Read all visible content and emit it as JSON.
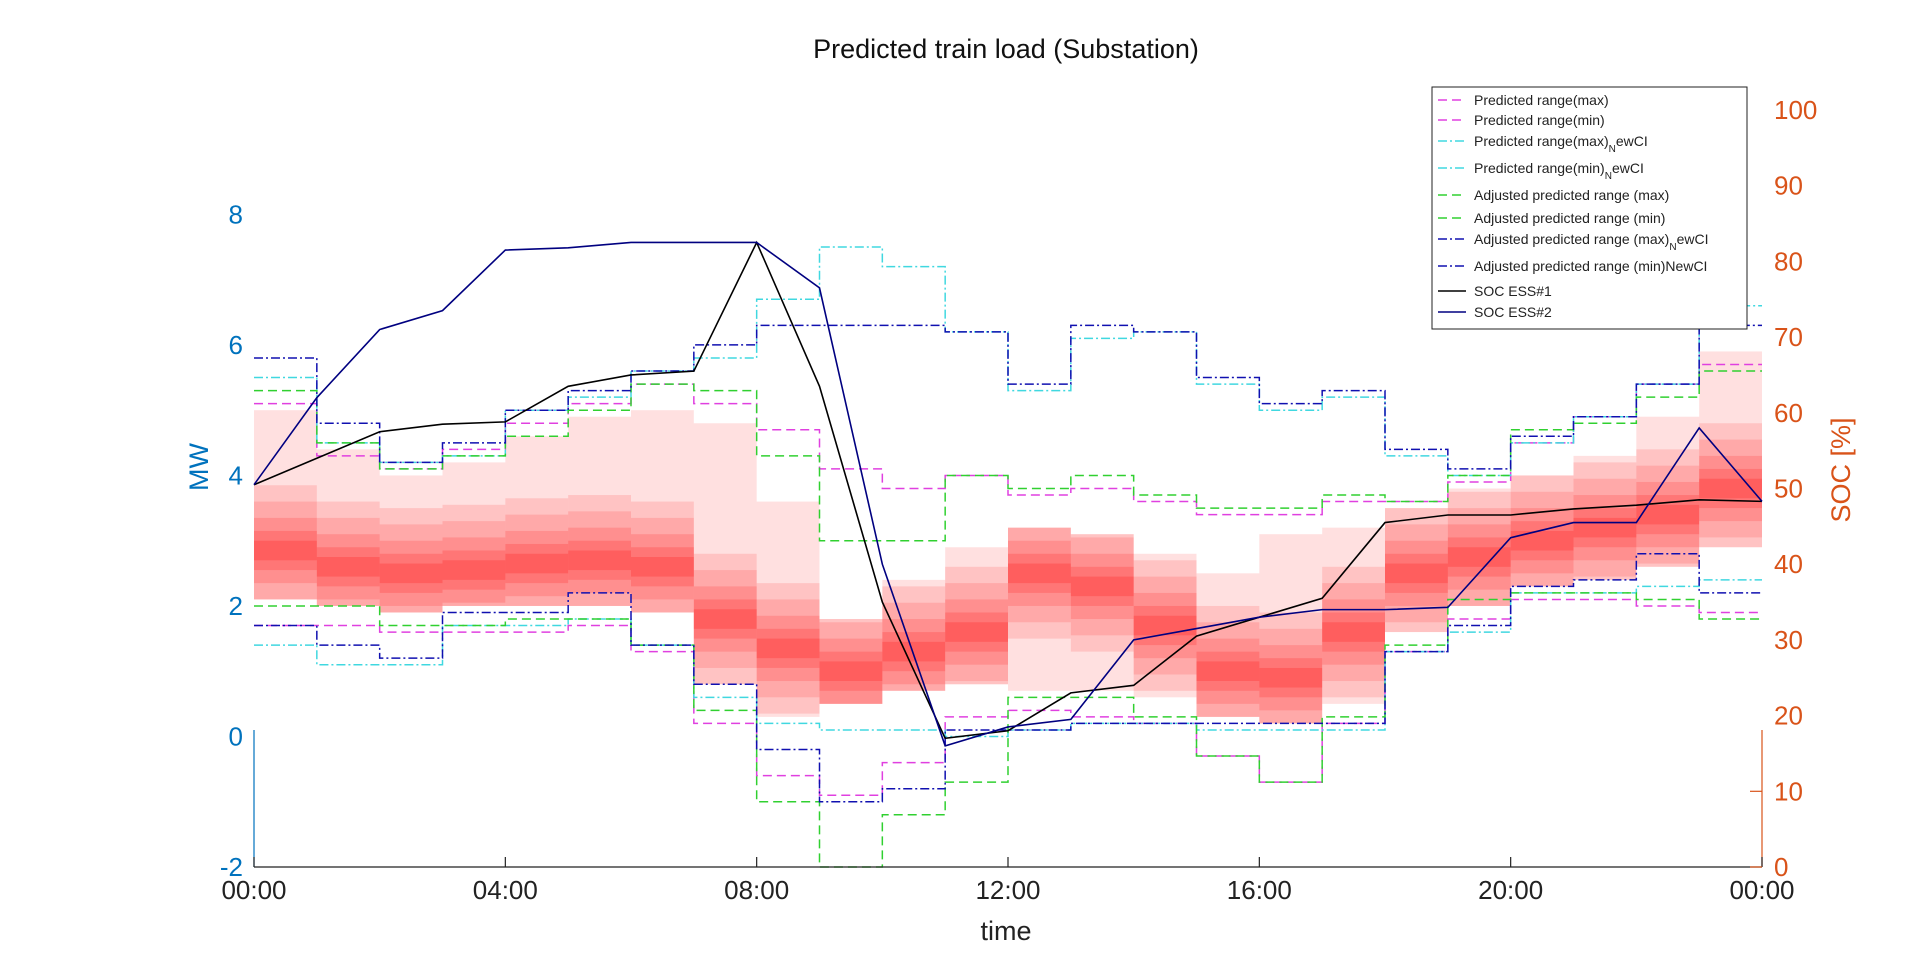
{
  "chart_data": {
    "type": "line",
    "title": "Predicted train load (Substation)",
    "xlabel": "time",
    "ylabel_left": "MW",
    "ylabel_right": "SOC [%]",
    "x_ticks": [
      "00:00",
      "04:00",
      "08:00",
      "12:00",
      "16:00",
      "20:00",
      "00:00"
    ],
    "xlim_hours": [
      0,
      24
    ],
    "ylim_left": [
      -2,
      9.6
    ],
    "yticks_left": [
      "-2",
      "0",
      "2",
      "4",
      "6",
      "8"
    ],
    "ylim_right": [
      0,
      100
    ],
    "yticks_right": [
      "0",
      "10",
      "20",
      "30",
      "40",
      "50",
      "60",
      "70",
      "80",
      "90",
      "100"
    ],
    "colors": {
      "left_axis": "#0072BD",
      "right_axis": "#D95319",
      "pred": "#E040E0",
      "newci": "#40D8E0",
      "adj": "#30D030",
      "adjnew": "#1010B0",
      "soc1": "#000000",
      "soc2": "#000080",
      "band": "#FF0000"
    },
    "legend": [
      {
        "label": "Predicted range(max)",
        "color": "#E040E0",
        "dash": "9 5"
      },
      {
        "label": "Predicted range(min)",
        "color": "#E040E0",
        "dash": "9 5"
      },
      {
        "label": "Predicted range(max)",
        "sub": "N",
        "suffix": "ewCI",
        "color": "#40D8E0",
        "dash": "9 3 2 3"
      },
      {
        "label": "Predicted range(min)",
        "sub": "N",
        "suffix": "ewCI",
        "color": "#40D8E0",
        "dash": "9 3 2 3"
      },
      {
        "label": "Adjusted predicted range (max)",
        "color": "#30D030",
        "dash": "9 5"
      },
      {
        "label": "Adjusted predicted range (min)",
        "color": "#30D030",
        "dash": "9 5"
      },
      {
        "label": "Adjusted predicted range (max)",
        "sub": "N",
        "suffix": "ewCI",
        "color": "#1010B0",
        "dash": "9 3 2 3"
      },
      {
        "label": "Adjusted predicted range (min)NewCI",
        "color": "#1010B0",
        "dash": "9 3 2 3"
      },
      {
        "label": "SOC ESS#1",
        "color": "#000000",
        "dash": ""
      },
      {
        "label": "SOC ESS#2",
        "color": "#000080",
        "dash": ""
      }
    ],
    "series": [
      {
        "key": "pred_max",
        "values": [
          5.1,
          4.3,
          4.1,
          4.4,
          4.8,
          5.1,
          5.4,
          5.1,
          4.7,
          4.1,
          3.8,
          4.0,
          3.7,
          3.8,
          3.6,
          3.4,
          3.4,
          3.6,
          3.6,
          3.9,
          4.5,
          4.9,
          5.4,
          5.7
        ]
      },
      {
        "key": "pred_min",
        "values": [
          1.7,
          1.7,
          1.6,
          1.6,
          1.6,
          1.7,
          1.3,
          0.2,
          -0.6,
          -0.9,
          -0.4,
          0.3,
          0.4,
          0.3,
          0.2,
          -0.3,
          -0.7,
          0.2,
          1.3,
          1.8,
          2.1,
          2.1,
          2.0,
          1.9
        ]
      },
      {
        "key": "newci_max",
        "values": [
          5.5,
          4.5,
          4.2,
          4.3,
          5.0,
          5.2,
          5.6,
          5.8,
          6.7,
          7.5,
          7.2,
          6.2,
          5.3,
          6.1,
          6.2,
          5.4,
          5.0,
          5.2,
          4.3,
          4.0,
          4.5,
          4.9,
          5.4,
          6.6
        ]
      },
      {
        "key": "newci_min",
        "values": [
          1.4,
          1.1,
          1.1,
          1.7,
          1.7,
          1.8,
          1.4,
          0.6,
          0.2,
          0.1,
          0.1,
          0.0,
          0.1,
          0.2,
          0.2,
          0.1,
          0.1,
          0.1,
          1.3,
          1.6,
          2.2,
          2.2,
          2.3,
          2.4
        ]
      },
      {
        "key": "adj_max",
        "values": [
          5.3,
          4.5,
          4.1,
          4.3,
          4.6,
          5.0,
          5.4,
          5.3,
          4.3,
          3.0,
          3.0,
          4.0,
          3.8,
          4.0,
          3.7,
          3.5,
          3.5,
          3.7,
          3.6,
          4.0,
          4.7,
          4.8,
          5.2,
          5.6
        ]
      },
      {
        "key": "adj_min",
        "values": [
          2.0,
          2.0,
          1.7,
          1.7,
          1.8,
          1.8,
          1.4,
          0.4,
          -1.0,
          -2.0,
          -1.2,
          -0.7,
          0.6,
          0.6,
          0.3,
          -0.3,
          -0.7,
          0.3,
          1.4,
          2.1,
          2.2,
          2.2,
          2.1,
          1.8
        ]
      },
      {
        "key": "adjnew_max",
        "values": [
          5.8,
          4.8,
          4.2,
          4.5,
          5.0,
          5.3,
          5.6,
          6.0,
          6.3,
          6.3,
          6.3,
          6.2,
          5.4,
          6.3,
          6.2,
          5.5,
          5.1,
          5.3,
          4.4,
          4.1,
          4.6,
          4.9,
          5.4,
          6.3
        ]
      },
      {
        "key": "adjnew_min",
        "values": [
          1.7,
          1.4,
          1.2,
          1.9,
          1.9,
          2.2,
          1.4,
          0.8,
          -0.2,
          -1.0,
          -0.8,
          0.1,
          0.1,
          0.2,
          0.2,
          0.2,
          0.2,
          0.2,
          1.3,
          1.7,
          2.3,
          2.4,
          2.8,
          2.2
        ]
      },
      {
        "key": "soc1",
        "axis": "right",
        "x": [
          0,
          1,
          2,
          3,
          4,
          5,
          6,
          7,
          8,
          9,
          10,
          11,
          12,
          13,
          14,
          15,
          16,
          17,
          18,
          19,
          20,
          21,
          22,
          23,
          24
        ],
        "values": [
          50.5,
          54,
          57.5,
          58.5,
          58.8,
          63.5,
          65,
          65.5,
          82.5,
          63.5,
          35,
          17,
          18,
          23,
          24,
          30.5,
          33,
          35.5,
          45.5,
          46.5,
          46.5,
          47.3,
          47.8,
          48.5,
          48.3
        ]
      },
      {
        "key": "soc2",
        "axis": "right",
        "x": [
          0,
          1,
          2,
          3,
          4,
          5,
          6,
          7,
          8,
          9,
          10,
          11,
          12,
          13,
          14,
          15,
          16,
          17,
          18,
          19,
          20,
          21,
          22,
          23,
          24
        ],
        "values": [
          50.5,
          62,
          71,
          73.5,
          81.5,
          81.8,
          82.5,
          82.5,
          82.5,
          76.5,
          40,
          16,
          18.5,
          19.5,
          30,
          31.5,
          33,
          34,
          34,
          34.3,
          43.5,
          45.5,
          45.5,
          58,
          48.3
        ]
      }
    ],
    "bands": {
      "widths": [
        1.0,
        0.75,
        0.5,
        0.3,
        0.15
      ],
      "alphas": [
        0.13,
        0.13,
        0.15,
        0.17,
        0.2
      ],
      "center": [
        2.85,
        2.6,
        2.5,
        2.55,
        2.65,
        2.7,
        2.6,
        1.8,
        1.35,
        1.0,
        1.3,
        1.6,
        2.5,
        2.3,
        1.7,
        1.0,
        0.9,
        1.6,
        2.5,
        2.75,
        3.0,
        3.2,
        3.4,
        3.8
      ],
      "outer_min": [
        2.1,
        2.0,
        1.9,
        2.0,
        2.0,
        2.0,
        1.9,
        0.8,
        0.3,
        0.5,
        0.7,
        0.8,
        0.7,
        0.7,
        0.6,
        0.3,
        0.2,
        0.5,
        1.6,
        2.0,
        2.3,
        2.4,
        2.6,
        2.9
      ],
      "outer_max": [
        5.0,
        4.4,
        4.0,
        4.2,
        4.6,
        4.9,
        5.0,
        4.8,
        3.6,
        1.8,
        2.4,
        2.9,
        3.2,
        3.1,
        2.8,
        2.5,
        3.1,
        3.2,
        3.5,
        3.8,
        4.0,
        4.3,
        4.9,
        5.9
      ]
    }
  }
}
